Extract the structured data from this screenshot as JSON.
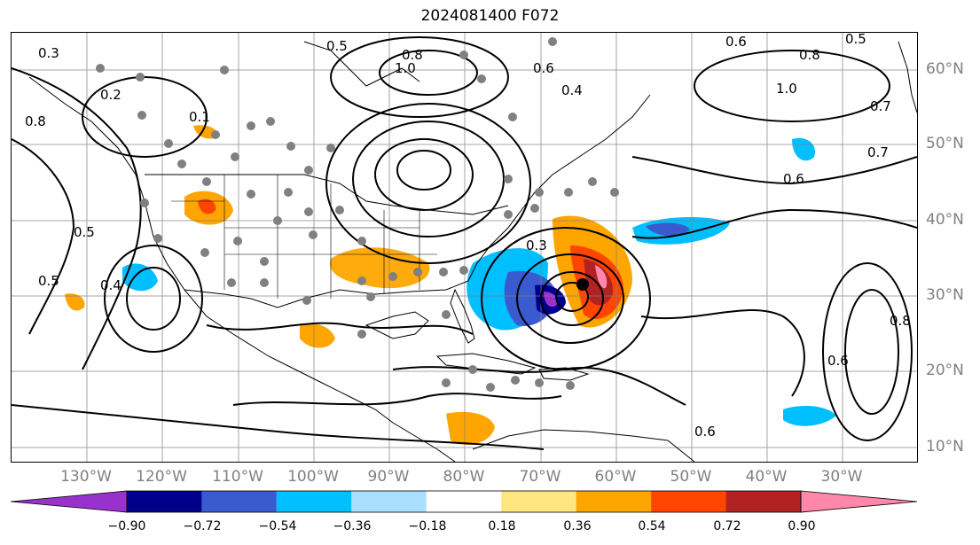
{
  "title": "2024081400 F072",
  "lat_labels": [
    "60°N",
    "50°N",
    "40°N",
    "30°N",
    "20°N",
    "10°N"
  ],
  "lon_labels": [
    "130°W",
    "120°W",
    "110°W",
    "100°W",
    "90°W",
    "80°W",
    "70°W",
    "60°W",
    "50°W",
    "40°W",
    "30°W"
  ],
  "colorbar": {
    "ticks": [
      "−0.90",
      "−0.72",
      "−0.54",
      "−0.36",
      "−0.18",
      "0.18",
      "0.36",
      "0.54",
      "0.72",
      "0.90"
    ],
    "colors": [
      "#9932cc",
      "#00008b",
      "#3a5bd0",
      "#00bfff",
      "#aadfff",
      "#ffffff",
      "#ffe680",
      "#ffa500",
      "#ff4500",
      "#b22222",
      "#ff88aa"
    ]
  },
  "contour_labels": [
    "0.3",
    "0.5",
    "0.8",
    "1.0",
    "0.6",
    "0.4",
    "0.7",
    "0.2",
    "0.1",
    "0.5",
    "0.8",
    "0.6",
    "0.5",
    "0.8",
    "1.0",
    "0.3",
    "0.6",
    "0.7",
    "0.6",
    "0.5",
    "0.4",
    "0.6",
    "0.8"
  ],
  "colors": {
    "land": "#000000",
    "grid": "#808080",
    "contour": "#000000",
    "dots": "#808080"
  }
}
